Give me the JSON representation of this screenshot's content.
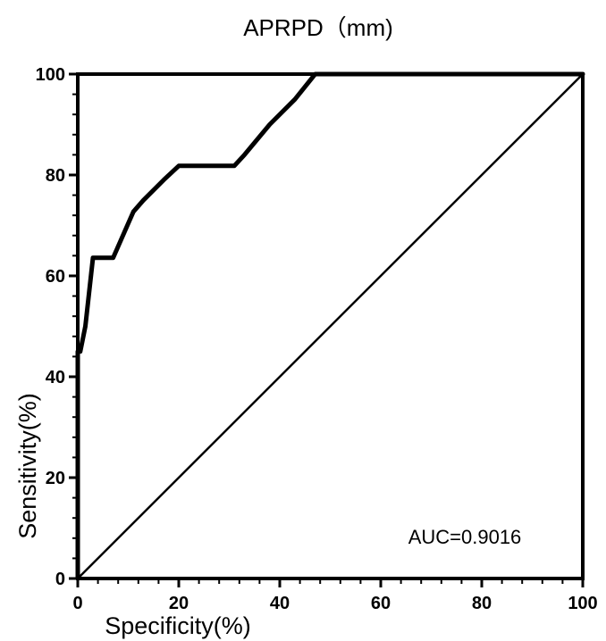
{
  "chart_data": {
    "type": "line",
    "title": "APRPD（mm)",
    "xlabel": "Specificity(%)",
    "ylabel": "Sensitivity(%)",
    "xlim": [
      0,
      100
    ],
    "ylim": [
      0,
      100
    ],
    "x_ticks": [
      "0",
      "20",
      "40",
      "60",
      "80",
      "100"
    ],
    "y_ticks": [
      "0",
      "20",
      "40",
      "60",
      "80",
      "100"
    ],
    "grid": false,
    "annotation": "AUC=0.9016",
    "series": [
      {
        "x": [
          0,
          0,
          0.5,
          1.5,
          3,
          3,
          7,
          7,
          11,
          13,
          17,
          20,
          31,
          33,
          38,
          43,
          47,
          100
        ],
        "y": [
          0,
          45,
          45,
          50,
          63.6,
          63.6,
          63.6,
          63.6,
          72.7,
          75,
          79,
          81.8,
          81.8,
          84,
          90,
          95,
          100,
          100
        ]
      },
      {
        "x": [
          0,
          100
        ],
        "y": [
          0,
          100
        ]
      }
    ]
  }
}
